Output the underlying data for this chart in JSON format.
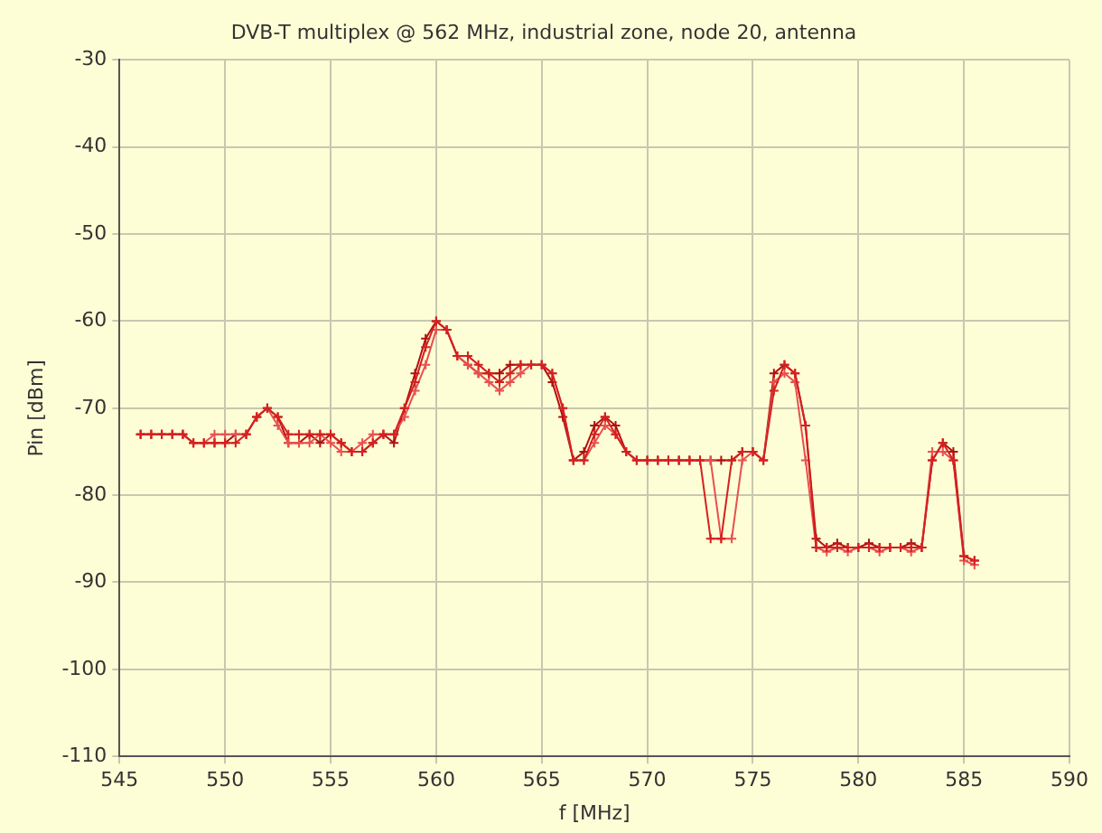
{
  "chart_data": {
    "type": "line",
    "title": "DVB-T multiplex @ 562 MHz, industrial zone, node 20, antenna",
    "xlabel": "f [MHz]",
    "ylabel": "Pin [dBm]",
    "x": [
      546,
      546.5,
      547,
      547.5,
      548,
      548.5,
      549,
      549.5,
      550,
      550.5,
      551,
      551.5,
      552,
      552.5,
      553,
      553.5,
      554,
      554.5,
      555,
      555.5,
      556,
      556.5,
      557,
      557.5,
      558,
      558.5,
      559,
      559.5,
      560,
      560.5,
      561,
      561.5,
      562,
      562.5,
      563,
      563.5,
      564,
      564.5,
      565,
      565.5,
      566,
      566.5,
      567,
      567.5,
      568,
      568.5,
      569,
      569.5,
      570,
      570.5,
      571,
      571.5,
      572,
      572.5,
      573,
      573.5,
      574,
      574.5,
      575,
      575.5,
      576,
      576.5,
      577,
      577.5,
      578,
      578.5,
      579,
      579.5,
      580,
      580.5,
      581,
      581.5,
      582,
      582.5,
      583,
      583.5,
      584,
      584.5,
      585,
      585.5
    ],
    "series": [
      {
        "color": "#d42020",
        "values": [
          -73,
          -73,
          -73,
          -73,
          -73,
          -74,
          -74,
          -74,
          -74,
          -74,
          -73,
          -71,
          -70,
          -71,
          -73,
          -73,
          -73,
          -73,
          -73,
          -74,
          -75,
          -75,
          -74,
          -73,
          -73,
          -70,
          -67,
          -63,
          -60,
          -61,
          -64,
          -64,
          -65,
          -66,
          -67,
          -66,
          -65,
          -65,
          -65,
          -66,
          -70,
          -76,
          -76,
          -73,
          -71,
          -73,
          -75,
          -76,
          -76,
          -76,
          -76,
          -76,
          -76,
          -76,
          -85,
          -85,
          -76,
          -75,
          -75,
          -76,
          -68,
          -65,
          -66,
          -72,
          -86,
          -86,
          -86,
          -86,
          -86,
          -86,
          -86,
          -86,
          -86,
          -86,
          -86,
          -76,
          -74,
          -76,
          -87,
          -87.5
        ]
      },
      {
        "color": "#e85050",
        "values": [
          -73,
          -73,
          -73,
          -73,
          -73,
          -74,
          -74,
          -73,
          -73,
          -73,
          -73,
          -71,
          -70,
          -72,
          -74,
          -74,
          -74,
          -73,
          -74,
          -75,
          -75,
          -74,
          -73,
          -73,
          -73,
          -71,
          -68,
          -65,
          -61,
          -61,
          -64,
          -65,
          -66,
          -67,
          -68,
          -67,
          -66,
          -65,
          -65,
          -66,
          -70,
          -76,
          -76,
          -74,
          -72,
          -73,
          -75,
          -76,
          -76,
          -76,
          -76,
          -76,
          -76,
          -76,
          -76,
          -85,
          -85,
          -76,
          -75,
          -76,
          -67,
          -66,
          -67,
          -76,
          -86,
          -86.5,
          -86,
          -86.5,
          -86,
          -86,
          -86.5,
          -86,
          -86,
          -86.5,
          -86,
          -75,
          -75,
          -76,
          -87.5,
          -88
        ]
      },
      {
        "color": "#b01010",
        "values": [
          -73,
          -73,
          -73,
          -73,
          -73,
          -74,
          -74,
          -74,
          -74,
          -73,
          -73,
          -71,
          -70,
          -71,
          -74,
          -74,
          -73,
          -74,
          -73,
          -74,
          -75,
          -75,
          -74,
          -73,
          -74,
          -70,
          -66,
          -62,
          -60,
          -61,
          -64,
          -65,
          -66,
          -66,
          -66,
          -65,
          -65,
          -65,
          -65,
          -67,
          -71,
          -76,
          -75,
          -72,
          -71,
          -72,
          -75,
          -76,
          -76,
          -76,
          -76,
          -76,
          -76,
          -76,
          -76,
          -76,
          -76,
          -75,
          -75,
          -76,
          -66,
          -65,
          -66,
          -72,
          -85,
          -86,
          -85.5,
          -86,
          -86,
          -85.5,
          -86,
          -86,
          -86,
          -85.5,
          -86,
          -76,
          -74,
          -75,
          -87,
          -87.5
        ]
      }
    ],
    "xlim": [
      545,
      590
    ],
    "xticks": [
      545,
      550,
      555,
      560,
      565,
      570,
      575,
      580,
      585,
      590
    ],
    "ylim": [
      -110,
      -30
    ],
    "yticks": [
      -110,
      -100,
      -90,
      -80,
      -70,
      -60,
      -50,
      -40,
      -30
    ],
    "grid": true,
    "legend": false,
    "marker": "cross",
    "line_style": "solid"
  }
}
